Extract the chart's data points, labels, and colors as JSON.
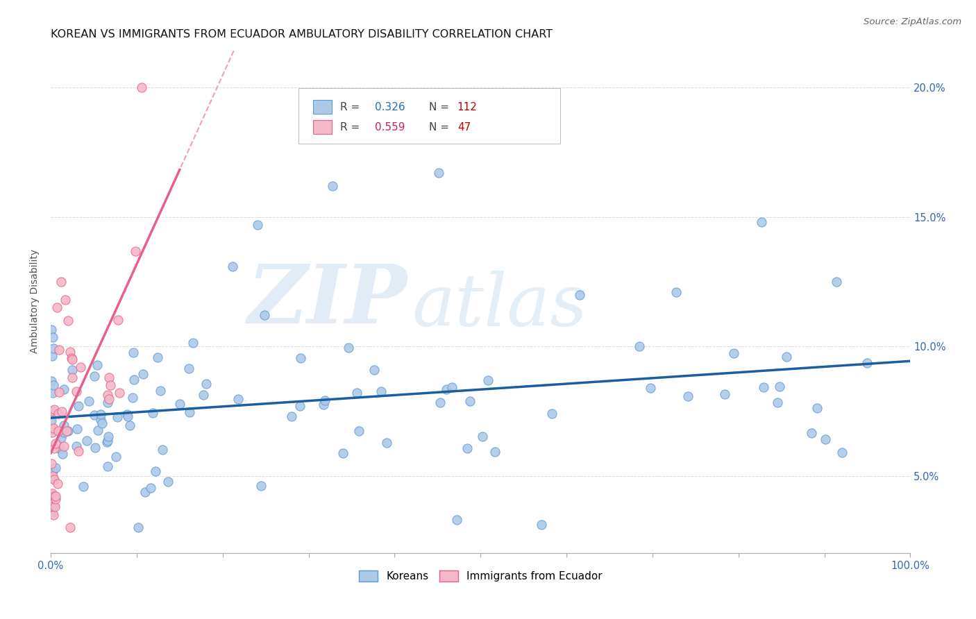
{
  "title": "KOREAN VS IMMIGRANTS FROM ECUADOR AMBULATORY DISABILITY CORRELATION CHART",
  "source": "Source: ZipAtlas.com",
  "ylabel": "Ambulatory Disability",
  "background_color": "#ffffff",
  "grid_color": "#dddddd",
  "watermark_text": "ZIP",
  "watermark_text2": "atlas",
  "korean_color": "#aec9e8",
  "korean_edge_color": "#5b9bd5",
  "ecuador_color": "#f4b8c8",
  "ecuador_edge_color": "#e8608a",
  "korean_R": 0.326,
  "korean_N": 112,
  "ecuador_R": 0.559,
  "ecuador_N": 47,
  "legend_R_color_korean": "#2070b0",
  "legend_N_color_korean": "#cc0000",
  "legend_R_color_ecuador": "#cc2255",
  "legend_N_color_ecuador": "#cc0000",
  "xlim": [
    0.0,
    1.0
  ],
  "ylim": [
    0.02,
    0.215
  ],
  "x_ticks": [
    0.0,
    0.1,
    0.2,
    0.3,
    0.4,
    0.5,
    0.6,
    0.7,
    0.8,
    0.9,
    1.0
  ],
  "x_tick_labels_show": [
    "0.0%",
    "",
    "",
    "",
    "",
    "",
    "",
    "",
    "",
    "",
    "100.0%"
  ],
  "y_ticks": [
    0.05,
    0.1,
    0.15,
    0.2
  ],
  "y_tick_labels": [
    "5.0%",
    "10.0%",
    "15.0%",
    "20.0%"
  ],
  "title_fontsize": 11.5,
  "axis_label_fontsize": 10,
  "tick_fontsize": 10.5,
  "legend_fontsize": 11,
  "source_fontsize": 9.5,
  "trend_dashed_color": "#f0a0b8",
  "korean_line_color": "#1a5fa0",
  "ecuador_line_color": "#e8608a"
}
